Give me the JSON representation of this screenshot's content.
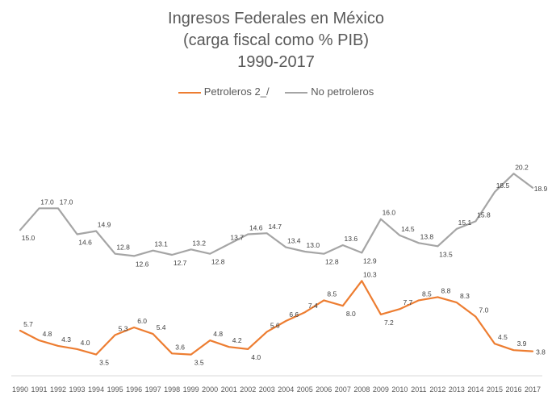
{
  "chart_data": {
    "type": "line",
    "title_lines": [
      "Ingresos Federales en México",
      "(carga fiscal como % PIB)",
      "1990-2017"
    ],
    "xlabel": "",
    "ylabel": "",
    "grid": false,
    "legend_position": "top",
    "categories": [
      "1990",
      "1991",
      "1992",
      "1993",
      "1994",
      "1995",
      "1996",
      "1997",
      "1998",
      "1999",
      "2000",
      "2001",
      "2002",
      "2003",
      "2004",
      "2005",
      "2006",
      "2007",
      "2008",
      "2009",
      "2010",
      "2011",
      "2012",
      "2013",
      "2014",
      "2015",
      "2016",
      "2017"
    ],
    "series": [
      {
        "name": "Petroleros 2_/",
        "color": "#ED7D31",
        "values": [
          5.7,
          4.8,
          4.3,
          4.0,
          3.5,
          5.3,
          6.0,
          5.4,
          3.6,
          3.5,
          4.8,
          4.2,
          4.0,
          5.6,
          6.6,
          7.4,
          8.5,
          8.0,
          10.3,
          7.2,
          7.7,
          8.5,
          8.8,
          8.3,
          7.0,
          4.5,
          3.9,
          3.8
        ],
        "labels": [
          "5.7",
          "4.8",
          "4.3",
          "4.0",
          "3.5",
          "5.3",
          "6.0",
          "5.4",
          "3.6",
          "3.5",
          "4.8",
          "4.2",
          "4.0",
          "5.6",
          "6.6",
          "7.4",
          "8.5",
          "8.0",
          "10.3",
          "7.2",
          "7.7",
          "8.5",
          "8.8",
          "8.3",
          "7.0",
          "4.5",
          "3.9",
          "3.8"
        ]
      },
      {
        "name": "No petroleros",
        "color": "#A5A5A5",
        "values": [
          15.0,
          17.0,
          17.0,
          14.6,
          14.9,
          12.8,
          12.6,
          13.1,
          12.7,
          13.2,
          12.8,
          13.7,
          14.6,
          14.7,
          13.4,
          13.0,
          12.8,
          13.6,
          12.9,
          16.0,
          14.5,
          13.8,
          13.5,
          15.1,
          15.8,
          18.5,
          20.2,
          18.9
        ],
        "labels": [
          "15.0",
          "17.0",
          "17.0",
          "14.6",
          "14.9",
          "12.8",
          "12.6",
          "13.1",
          "12.7",
          "13.2",
          "12.8",
          "13.7",
          "14.6",
          "14.7",
          "13.4",
          "13.0",
          "12.8",
          "13.6",
          "12.9",
          "16.0",
          "14.5",
          "13.8",
          "13.5",
          "15.1",
          "15.8",
          "18.5",
          "20.2",
          "18.9"
        ]
      }
    ]
  }
}
